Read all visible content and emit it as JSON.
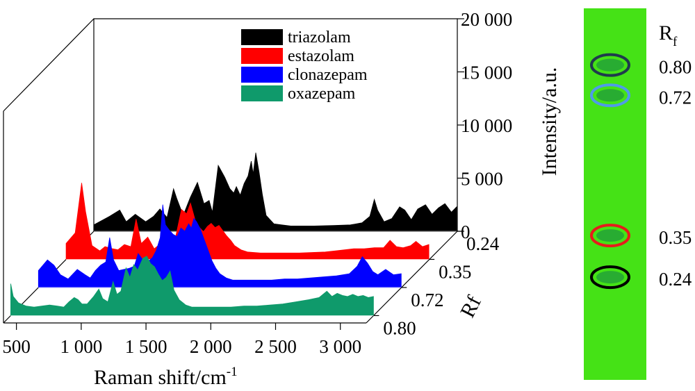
{
  "chart_data": {
    "type": "area",
    "subtype": "3d-waterfall",
    "xlabel_base": "Raman shift/cm",
    "xlabel_sup": "-1",
    "ylabel": "Intensity/a.u.",
    "zlabel": "Rf",
    "x_ticks": [
      "500",
      "1 000",
      "1 500",
      "2 000",
      "2 500",
      "3 000"
    ],
    "xlim": [
      400,
      3200
    ],
    "z_ticks": [
      "0.24",
      "0.35",
      "0.72",
      "0.80"
    ],
    "y_ticks": [
      "0",
      "5 000",
      "10 000",
      "15 000",
      "20 000"
    ],
    "ylim": [
      0,
      20000
    ],
    "legend_position": "top-center",
    "series": [
      {
        "name": "triazolam",
        "rf": "0.24",
        "color": "#000000",
        "peaks": [
          [
            400,
            600
          ],
          [
            520,
            1400
          ],
          [
            600,
            2000
          ],
          [
            650,
            900
          ],
          [
            720,
            1600
          ],
          [
            800,
            900
          ],
          [
            860,
            1400
          ],
          [
            910,
            2100
          ],
          [
            965,
            1300
          ],
          [
            1015,
            4000
          ],
          [
            1040,
            3100
          ],
          [
            1090,
            1500
          ],
          [
            1145,
            3200
          ],
          [
            1200,
            4600
          ],
          [
            1250,
            2600
          ],
          [
            1290,
            2900
          ],
          [
            1315,
            1800
          ],
          [
            1360,
            6200
          ],
          [
            1410,
            5100
          ],
          [
            1450,
            4000
          ],
          [
            1480,
            3600
          ],
          [
            1500,
            4200
          ],
          [
            1530,
            3400
          ],
          [
            1560,
            4500
          ],
          [
            1590,
            5200
          ],
          [
            1615,
            6600
          ],
          [
            1630,
            5400
          ],
          [
            1650,
            7400
          ],
          [
            1675,
            5600
          ],
          [
            1700,
            3500
          ],
          [
            1730,
            1500
          ],
          [
            1790,
            700
          ],
          [
            1850,
            600
          ],
          [
            1920,
            500
          ],
          [
            2000,
            500
          ],
          [
            2100,
            500
          ],
          [
            2250,
            550
          ],
          [
            2380,
            600
          ],
          [
            2470,
            800
          ],
          [
            2530,
            1400
          ],
          [
            2565,
            3000
          ],
          [
            2590,
            2000
          ],
          [
            2640,
            900
          ],
          [
            2700,
            1200
          ],
          [
            2760,
            2300
          ],
          [
            2800,
            2000
          ],
          [
            2850,
            1100
          ],
          [
            2900,
            2100
          ],
          [
            2960,
            2500
          ],
          [
            3010,
            1600
          ],
          [
            3060,
            2200
          ],
          [
            3110,
            2600
          ],
          [
            3160,
            1800
          ],
          [
            3200,
            2300
          ]
        ]
      },
      {
        "name": "estazolam",
        "rf": "0.35",
        "color": "#ff0000",
        "peaks": [
          [
            400,
            1500
          ],
          [
            470,
            2500
          ],
          [
            520,
            7200
          ],
          [
            550,
            4500
          ],
          [
            600,
            1300
          ],
          [
            660,
            800
          ],
          [
            700,
            1200
          ],
          [
            760,
            1000
          ],
          [
            800,
            900
          ],
          [
            850,
            1400
          ],
          [
            900,
            1200
          ],
          [
            940,
            3800
          ],
          [
            980,
            1500
          ],
          [
            1030,
            2100
          ],
          [
            1080,
            1000
          ],
          [
            1120,
            1400
          ],
          [
            1160,
            1700
          ],
          [
            1200,
            2000
          ],
          [
            1240,
            1800
          ],
          [
            1290,
            4700
          ],
          [
            1330,
            4300
          ],
          [
            1360,
            5300
          ],
          [
            1400,
            3500
          ],
          [
            1430,
            3000
          ],
          [
            1460,
            2600
          ],
          [
            1490,
            3100
          ],
          [
            1520,
            3400
          ],
          [
            1550,
            3000
          ],
          [
            1580,
            3200
          ],
          [
            1610,
            2700
          ],
          [
            1640,
            2200
          ],
          [
            1670,
            1800
          ],
          [
            1700,
            1300
          ],
          [
            1750,
            900
          ],
          [
            1800,
            700
          ],
          [
            1900,
            600
          ],
          [
            2000,
            600
          ],
          [
            2100,
            600
          ],
          [
            2200,
            600
          ],
          [
            2300,
            650
          ],
          [
            2400,
            700
          ],
          [
            2480,
            800
          ],
          [
            2550,
            900
          ],
          [
            2620,
            1000
          ],
          [
            2700,
            1000
          ],
          [
            2780,
            1100
          ],
          [
            2850,
            1100
          ],
          [
            2900,
            1800
          ],
          [
            2950,
            1200
          ],
          [
            3000,
            1100
          ],
          [
            3060,
            1300
          ],
          [
            3100,
            1700
          ],
          [
            3150,
            1200
          ],
          [
            3200,
            1400
          ]
        ]
      },
      {
        "name": "clonazepam",
        "rf": "0.72",
        "color": "#0000ff",
        "peaks": [
          [
            400,
            1600
          ],
          [
            470,
            2600
          ],
          [
            520,
            2100
          ],
          [
            570,
            1200
          ],
          [
            630,
            800
          ],
          [
            700,
            1700
          ],
          [
            760,
            1200
          ],
          [
            800,
            900
          ],
          [
            840,
            1600
          ],
          [
            880,
            2100
          ],
          [
            920,
            2400
          ],
          [
            950,
            4700
          ],
          [
            980,
            2600
          ],
          [
            1020,
            1600
          ],
          [
            1060,
            1700
          ],
          [
            1100,
            1800
          ],
          [
            1140,
            2000
          ],
          [
            1170,
            3200
          ],
          [
            1200,
            2700
          ],
          [
            1240,
            2400
          ],
          [
            1280,
            2800
          ],
          [
            1310,
            3500
          ],
          [
            1340,
            4700
          ],
          [
            1360,
            7800
          ],
          [
            1380,
            5900
          ],
          [
            1410,
            5400
          ],
          [
            1440,
            5000
          ],
          [
            1470,
            4800
          ],
          [
            1500,
            5600
          ],
          [
            1530,
            5300
          ],
          [
            1560,
            6000
          ],
          [
            1580,
            5600
          ],
          [
            1600,
            6500
          ],
          [
            1620,
            6200
          ],
          [
            1650,
            5500
          ],
          [
            1680,
            4500
          ],
          [
            1710,
            3500
          ],
          [
            1740,
            2500
          ],
          [
            1770,
            1800
          ],
          [
            1800,
            1300
          ],
          [
            1850,
            900
          ],
          [
            1900,
            700
          ],
          [
            2000,
            700
          ],
          [
            2100,
            700
          ],
          [
            2200,
            700
          ],
          [
            2300,
            800
          ],
          [
            2400,
            800
          ],
          [
            2500,
            900
          ],
          [
            2600,
            1000
          ],
          [
            2700,
            1100
          ],
          [
            2800,
            1300
          ],
          [
            2860,
            2000
          ],
          [
            2900,
            2900
          ],
          [
            2940,
            2300
          ],
          [
            2980,
            1500
          ],
          [
            3020,
            1200
          ],
          [
            3080,
            1700
          ],
          [
            3140,
            1200
          ],
          [
            3200,
            1300
          ]
        ]
      },
      {
        "name": "oxazepam",
        "rf": "0.80",
        "color": "#0f9a6b",
        "peaks": [
          [
            400,
            3000
          ],
          [
            420,
            1800
          ],
          [
            460,
            1200
          ],
          [
            520,
            900
          ],
          [
            580,
            800
          ],
          [
            640,
            900
          ],
          [
            700,
            1000
          ],
          [
            760,
            900
          ],
          [
            810,
            800
          ],
          [
            850,
            1300
          ],
          [
            890,
            1700
          ],
          [
            920,
            1500
          ],
          [
            950,
            1100
          ],
          [
            990,
            1100
          ],
          [
            1040,
            1800
          ],
          [
            1080,
            2500
          ],
          [
            1110,
            1600
          ],
          [
            1150,
            1300
          ],
          [
            1190,
            3200
          ],
          [
            1220,
            2000
          ],
          [
            1250,
            2300
          ],
          [
            1290,
            4500
          ],
          [
            1320,
            3600
          ],
          [
            1350,
            4800
          ],
          [
            1380,
            4300
          ],
          [
            1420,
            5400
          ],
          [
            1450,
            5600
          ],
          [
            1480,
            4900
          ],
          [
            1510,
            4600
          ],
          [
            1540,
            3900
          ],
          [
            1570,
            3300
          ],
          [
            1600,
            3600
          ],
          [
            1630,
            4200
          ],
          [
            1660,
            2400
          ],
          [
            1700,
            1500
          ],
          [
            1750,
            1000
          ],
          [
            1800,
            800
          ],
          [
            1900,
            800
          ],
          [
            2000,
            800
          ],
          [
            2100,
            800
          ],
          [
            2200,
            900
          ],
          [
            2300,
            900
          ],
          [
            2400,
            1000
          ],
          [
            2500,
            1100
          ],
          [
            2600,
            1300
          ],
          [
            2700,
            1500
          ],
          [
            2780,
            1700
          ],
          [
            2840,
            2300
          ],
          [
            2880,
            1800
          ],
          [
            2920,
            2100
          ],
          [
            2960,
            1900
          ],
          [
            3000,
            1800
          ],
          [
            3040,
            2000
          ],
          [
            3080,
            1800
          ],
          [
            3120,
            1900
          ],
          [
            3160,
            1700
          ],
          [
            3200,
            1800
          ]
        ]
      }
    ]
  },
  "tlc_plate": {
    "header_base": "R",
    "header_sub": "f",
    "background": "#45e216",
    "spots": [
      {
        "rf": "0.80",
        "ring_color": "#1f3b4d"
      },
      {
        "rf": "0.72",
        "ring_color": "#4f9be8"
      },
      {
        "rf": "0.35",
        "ring_color": "#e61c1c"
      },
      {
        "rf": "0.24",
        "ring_color": "#000000"
      }
    ]
  }
}
